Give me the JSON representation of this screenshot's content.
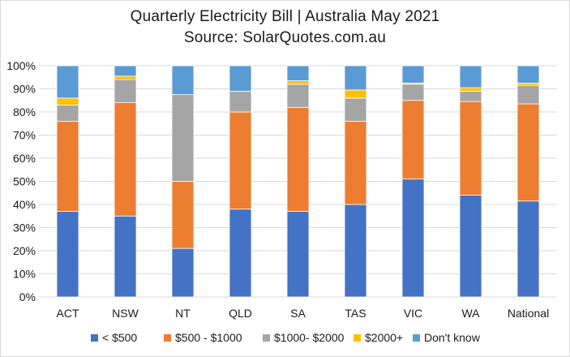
{
  "chart_data": {
    "type": "bar",
    "stacked": true,
    "title": "Quarterly Electricity Bill | Australia May 2021",
    "subtitle": "Source: SolarQuotes.com.au",
    "xlabel": "",
    "ylabel": "",
    "ylim": [
      0,
      100
    ],
    "y_ticks": [
      "0%",
      "10%",
      "20%",
      "30%",
      "40%",
      "50%",
      "60%",
      "70%",
      "80%",
      "90%",
      "100%"
    ],
    "grid": true,
    "legend_position": "bottom",
    "categories": [
      "ACT",
      "NSW",
      "NT",
      "QLD",
      "SA",
      "TAS",
      "VIC",
      "WA",
      "National"
    ],
    "series": [
      {
        "name": "< $500",
        "color": "#4472c4",
        "values": [
          37,
          35,
          21,
          38,
          37,
          40,
          51,
          44,
          41.5
        ]
      },
      {
        "name": "$500 - $1000",
        "color": "#ed7d31",
        "values": [
          39,
          49,
          29,
          42,
          45,
          36,
          34,
          40.5,
          42
        ]
      },
      {
        "name": "$1000- $2000",
        "color": "#a5a5a5",
        "values": [
          7,
          10,
          37.5,
          9,
          10,
          10,
          7,
          4.5,
          8
        ]
      },
      {
        "name": "$2000+",
        "color": "#ffc000",
        "values": [
          3,
          1.5,
          0,
          0,
          1.5,
          3.5,
          0.5,
          1.5,
          1
        ]
      },
      {
        "name": "Don't know",
        "color": "#5b9bd5",
        "values": [
          14,
          4.5,
          12.5,
          11,
          6.5,
          10.5,
          7.5,
          9.5,
          7.5
        ]
      }
    ]
  }
}
